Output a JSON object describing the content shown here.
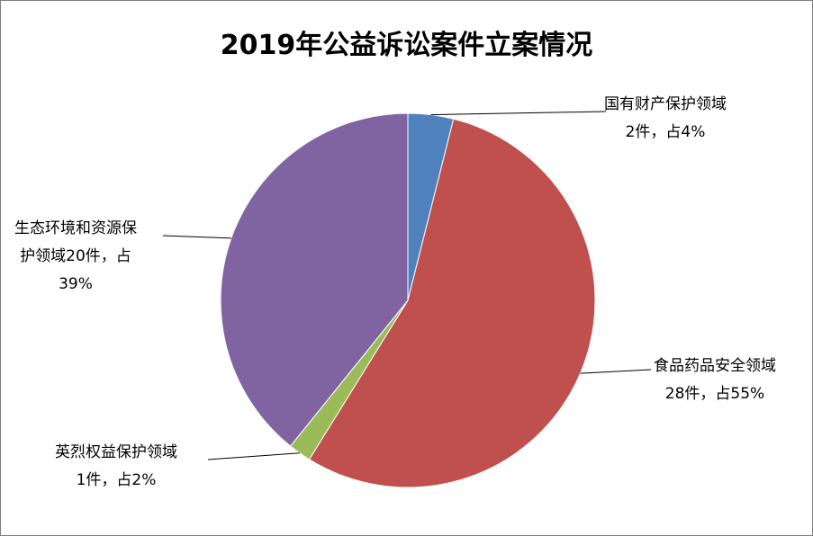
{
  "chart_data": {
    "type": "pie",
    "title": "2019年公益诉讼案件立案情况",
    "start_angle": "top",
    "direction": "clockwise",
    "slices": [
      {
        "name": "国有财产保护领域",
        "value": 2,
        "percent": 4,
        "color": "#4F81BD",
        "label_lines": [
          "国有财产保护领域",
          "2件，占4%"
        ]
      },
      {
        "name": "食品药品安全领域",
        "value": 28,
        "percent": 55,
        "color": "#C0504D",
        "label_lines": [
          "食品药品安全领域",
          "28件，占55%"
        ]
      },
      {
        "name": "英烈权益保护领域",
        "value": 1,
        "percent": 2,
        "color": "#9BBB59",
        "label_lines": [
          "英烈权益保护领域",
          "1件，占2%"
        ]
      },
      {
        "name": "生态环境和资源保护领域",
        "value": 20,
        "percent": 39,
        "color": "#8064A2",
        "label_lines": [
          "生态环境和资源保",
          "护领域20件，占",
          "39%"
        ]
      }
    ]
  }
}
